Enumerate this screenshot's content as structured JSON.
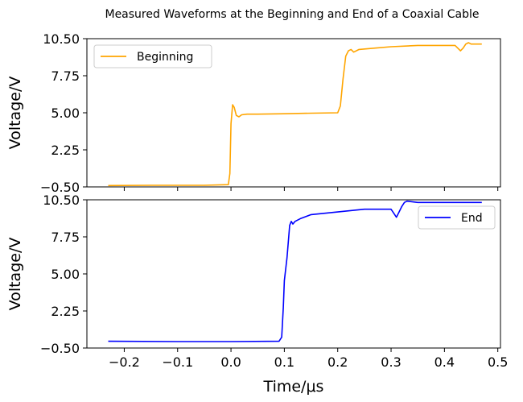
{
  "chart_data": {
    "suptitle": "Measured Waveforms at the Beginning and End of a Coaxial Cable",
    "xlabel": "Time/μs",
    "xlim": [
      -0.27,
      0.505
    ],
    "xticks": [
      -0.2,
      -0.1,
      0.0,
      0.1,
      0.2,
      0.3,
      0.4,
      0.5
    ],
    "xtick_labels": [
      "−0.2",
      "−0.1",
      "0.0",
      "0.1",
      "0.2",
      "0.3",
      "0.4",
      "0.5"
    ],
    "panels": [
      {
        "type": "line",
        "ylabel": "Voltage/V",
        "ylim": [
          -0.5,
          10.5
        ],
        "yticks": [
          -0.5,
          2.25,
          5.0,
          7.75,
          10.5
        ],
        "ytick_labels": [
          "−0.50",
          "2.25",
          "5.00",
          "7.75",
          "10.50"
        ],
        "legend_position": "upper-left",
        "series": [
          {
            "name": "Beginning",
            "color": "#ffa500",
            "x": [
              -0.23,
              -0.15,
              -0.05,
              -0.005,
              -0.002,
              0.0,
              0.003,
              0.006,
              0.01,
              0.015,
              0.02,
              0.03,
              0.05,
              0.1,
              0.15,
              0.2,
              0.205,
              0.21,
              0.215,
              0.22,
              0.225,
              0.23,
              0.24,
              0.27,
              0.3,
              0.35,
              0.4,
              0.42,
              0.425,
              0.43,
              0.435,
              0.44,
              0.445,
              0.45,
              0.46,
              0.47
            ],
            "y": [
              -0.4,
              -0.38,
              -0.38,
              -0.33,
              0.5,
              4.2,
              5.6,
              5.4,
              4.8,
              4.7,
              4.85,
              4.9,
              4.9,
              4.93,
              4.97,
              5.0,
              5.5,
              7.5,
              9.2,
              9.6,
              9.7,
              9.5,
              9.7,
              9.8,
              9.9,
              10.0,
              10.0,
              10.0,
              9.8,
              9.6,
              9.8,
              10.1,
              10.2,
              10.1,
              10.1,
              10.1
            ]
          }
        ]
      },
      {
        "type": "line",
        "ylabel": "Voltage/V",
        "ylim": [
          -0.5,
          10.5
        ],
        "yticks": [
          -0.5,
          2.25,
          5.0,
          7.75,
          10.5
        ],
        "ytick_labels": [
          "−0.50",
          "2.25",
          "5.00",
          "7.75",
          "10.50"
        ],
        "legend_position": "upper-right",
        "series": [
          {
            "name": "End",
            "color": "#0000ff",
            "x": [
              -0.23,
              -0.1,
              0.0,
              0.09,
              0.095,
              0.098,
              0.1,
              0.105,
              0.11,
              0.113,
              0.116,
              0.12,
              0.13,
              0.15,
              0.2,
              0.25,
              0.3,
              0.305,
              0.31,
              0.315,
              0.32,
              0.325,
              0.33,
              0.35,
              0.4,
              0.47
            ],
            "y": [
              0.0,
              -0.02,
              -0.02,
              0.0,
              0.3,
              2.5,
              4.5,
              6.2,
              8.6,
              8.9,
              8.7,
              8.9,
              9.1,
              9.4,
              9.6,
              9.8,
              9.8,
              9.5,
              9.2,
              9.6,
              10.0,
              10.3,
              10.4,
              10.3,
              10.3,
              10.3
            ]
          }
        ]
      }
    ]
  }
}
